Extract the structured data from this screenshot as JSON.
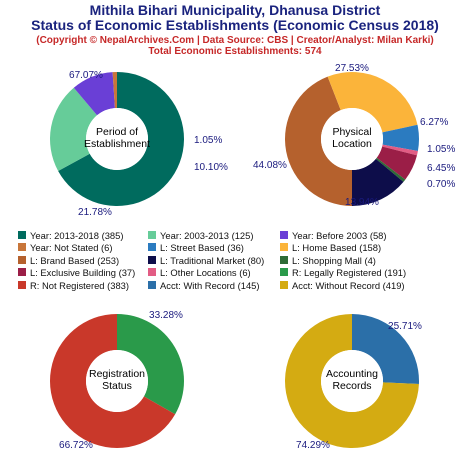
{
  "header": {
    "title_line1": "Mithila Bihari Municipality, Dhanusa District",
    "title_line2": "Status of Economic Establishments (Economic Census 2018)",
    "subtitle_line1": "(Copyright © NepalArchives.Com | Data Source: CBS | Creator/Analyst: Milan Karki)",
    "subtitle_line2": "Total Economic Establishments: 574"
  },
  "chart_data": [
    {
      "type": "pie",
      "title": "Period of Establishment",
      "labels": [
        "Year: 2013-2018",
        "Year: 2003-2013",
        "Year: Before 2003",
        "Year: Not Stated"
      ],
      "values": [
        385,
        125,
        58,
        6
      ],
      "percent_labels": [
        "67.07%",
        "21.78%",
        "10.10%",
        "1.05%"
      ],
      "colors": [
        "#006b5e",
        "#66cc99",
        "#6a3fd6",
        "#c8763a"
      ],
      "start_angle_deg": 90
    },
    {
      "type": "pie",
      "title": "Physical Location",
      "labels": [
        "L: Brand Based",
        "L: Home Based",
        "L: Street Based",
        "L: Other Locations",
        "L: Exclusive Building",
        "L: Shopping Mall",
        "L: Traditional Market"
      ],
      "values": [
        253,
        158,
        36,
        6,
        37,
        4,
        80
      ],
      "percent_labels": [
        "44.08%",
        "27.53%",
        "6.27%",
        "1.05%",
        "6.45%",
        "0.70%",
        "13.94%"
      ],
      "colors": [
        "#b5612d",
        "#fbb43a",
        "#2b7bc0",
        "#e25c84",
        "#9b1e47",
        "#2e6b36",
        "#0d0d4a"
      ],
      "start_angle_deg": 270
    },
    {
      "type": "pie",
      "title": "Registration Status",
      "labels": [
        "R: Legally Registered",
        "R: Not Registered"
      ],
      "values": [
        191,
        383
      ],
      "percent_labels": [
        "33.28%",
        "66.72%"
      ],
      "colors": [
        "#2a9a4a",
        "#c9382a"
      ],
      "start_angle_deg": 90
    },
    {
      "type": "pie",
      "title": "Accounting Records",
      "labels": [
        "Acct: With Record",
        "Acct: Without Record"
      ],
      "values": [
        145,
        419
      ],
      "percent_labels": [
        "25.71%",
        "74.29%"
      ],
      "colors": [
        "#2b6fa8",
        "#d4ab12"
      ],
      "start_angle_deg": 90
    }
  ],
  "legend": [
    {
      "label": "Year: 2013-2018 (385)",
      "color": "#006b5e"
    },
    {
      "label": "Year: 2003-2013 (125)",
      "color": "#66cc99"
    },
    {
      "label": "Year: Before 2003 (58)",
      "color": "#6a3fd6"
    },
    {
      "label": "Year: Not Stated (6)",
      "color": "#c8763a"
    },
    {
      "label": "L: Street Based (36)",
      "color": "#2b7bc0"
    },
    {
      "label": "L: Home Based (158)",
      "color": "#fbb43a"
    },
    {
      "label": "L: Brand Based (253)",
      "color": "#b5612d"
    },
    {
      "label": "L: Traditional Market (80)",
      "color": "#0d0d4a"
    },
    {
      "label": "L: Shopping Mall (4)",
      "color": "#2e6b36"
    },
    {
      "label": "L: Exclusive Building (37)",
      "color": "#9b1e47"
    },
    {
      "label": "L: Other Locations (6)",
      "color": "#e25c84"
    },
    {
      "label": "R: Legally Registered (191)",
      "color": "#2a9a4a"
    },
    {
      "label": "R: Not Registered (383)",
      "color": "#c9382a"
    },
    {
      "label": "Acct: With Record (145)",
      "color": "#2b6fa8"
    },
    {
      "label": "Acct: Without Record (419)",
      "color": "#d4ab12"
    }
  ],
  "center_labels": [
    [
      "Period of",
      "Establishment"
    ],
    [
      "Physical",
      "Location"
    ],
    [
      "Registration",
      "Status"
    ],
    [
      "Accounting",
      "Records"
    ]
  ]
}
